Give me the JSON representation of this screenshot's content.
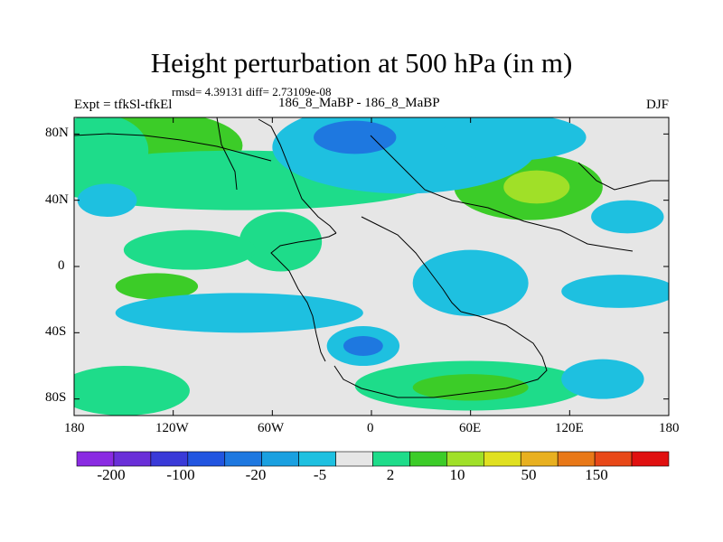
{
  "header": {
    "title": "Height perturbation at 500 hPa (in m)",
    "stats": "rmsd= 4.39131 diff= 2.73109e-08",
    "experiment": "Expt = tfkSl-tfkEl",
    "case": "186_8_MaBP - 186_8_MaBP",
    "season": "DJF"
  },
  "axes": {
    "lat_labels": [
      "80N",
      "40N",
      "0",
      "40S",
      "80S"
    ],
    "lon_labels": [
      "180",
      "120W",
      "60W",
      "0",
      "60E",
      "120E",
      "180"
    ]
  },
  "colorbar": {
    "colors": [
      "#8a2be2",
      "#6a2fd8",
      "#3a3ad8",
      "#2255e0",
      "#1e78e0",
      "#1aa0e0",
      "#1ec0e0",
      "#e6e6e6",
      "#1edc8a",
      "#3ccc28",
      "#a0e028",
      "#e0e020",
      "#e8b020",
      "#e87818",
      "#e84818",
      "#e01010"
    ],
    "labels": [
      "-200",
      "-100",
      "-20",
      "-5",
      "2",
      "10",
      "50",
      "150"
    ]
  },
  "chart_data": {
    "type": "contour-map",
    "title": "Height perturbation at 500 hPa (in m)",
    "variable": "500 hPa geopotential height perturbation",
    "units": "m",
    "season": "DJF",
    "xlim": [
      -180,
      180
    ],
    "ylim": [
      -90,
      90
    ],
    "color_levels": [
      "-200",
      "-100",
      "-20",
      "-5",
      "2",
      "10",
      "50",
      "150"
    ],
    "blobs": [
      {
        "lon": -128,
        "lat": 73,
        "rlon": 50,
        "rlat": 20,
        "level": "10"
      },
      {
        "lon": -165,
        "lat": 70,
        "rlon": 30,
        "rlat": 22,
        "level": "2"
      },
      {
        "lon": -80,
        "lat": 52,
        "rlon": 120,
        "rlat": 18,
        "level": "2"
      },
      {
        "lon": 95,
        "lat": 48,
        "rlon": 45,
        "rlat": 20,
        "level": "10"
      },
      {
        "lon": 100,
        "lat": 48,
        "rlon": 20,
        "rlat": 10,
        "level": "50"
      },
      {
        "lon": 20,
        "lat": 72,
        "rlon": 80,
        "rlat": 28,
        "level": "-5"
      },
      {
        "lon": 85,
        "lat": 78,
        "rlon": 45,
        "rlat": 14,
        "level": "-5"
      },
      {
        "lon": -10,
        "lat": 78,
        "rlon": 25,
        "rlat": 10,
        "level": "-20"
      },
      {
        "lon": 155,
        "lat": 30,
        "rlon": 22,
        "rlat": 10,
        "level": "-5"
      },
      {
        "lon": -160,
        "lat": 40,
        "rlon": 18,
        "rlat": 10,
        "level": "-5"
      },
      {
        "lon": -55,
        "lat": 15,
        "rlon": 25,
        "rlat": 18,
        "level": "2"
      },
      {
        "lon": -110,
        "lat": 10,
        "rlon": 40,
        "rlat": 12,
        "level": "2"
      },
      {
        "lon": -130,
        "lat": -12,
        "rlon": 25,
        "rlat": 8,
        "level": "10"
      },
      {
        "lon": -80,
        "lat": -28,
        "rlon": 75,
        "rlat": 12,
        "level": "-5"
      },
      {
        "lon": 60,
        "lat": -10,
        "rlon": 35,
        "rlat": 20,
        "level": "-5"
      },
      {
        "lon": 150,
        "lat": -15,
        "rlon": 35,
        "rlat": 10,
        "level": "-5"
      },
      {
        "lon": -150,
        "lat": -75,
        "rlon": 40,
        "rlat": 15,
        "level": "2"
      },
      {
        "lon": 60,
        "lat": -72,
        "rlon": 70,
        "rlat": 15,
        "level": "2"
      },
      {
        "lon": 60,
        "lat": -73,
        "rlon": 35,
        "rlat": 8,
        "level": "10"
      },
      {
        "lon": -5,
        "lat": -48,
        "rlon": 22,
        "rlat": 12,
        "level": "-5"
      },
      {
        "lon": -5,
        "lat": -48,
        "rlon": 12,
        "rlat": 6,
        "level": "-20"
      },
      {
        "lon": 140,
        "lat": -68,
        "rlon": 25,
        "rlat": 12,
        "level": "-5"
      }
    ]
  }
}
